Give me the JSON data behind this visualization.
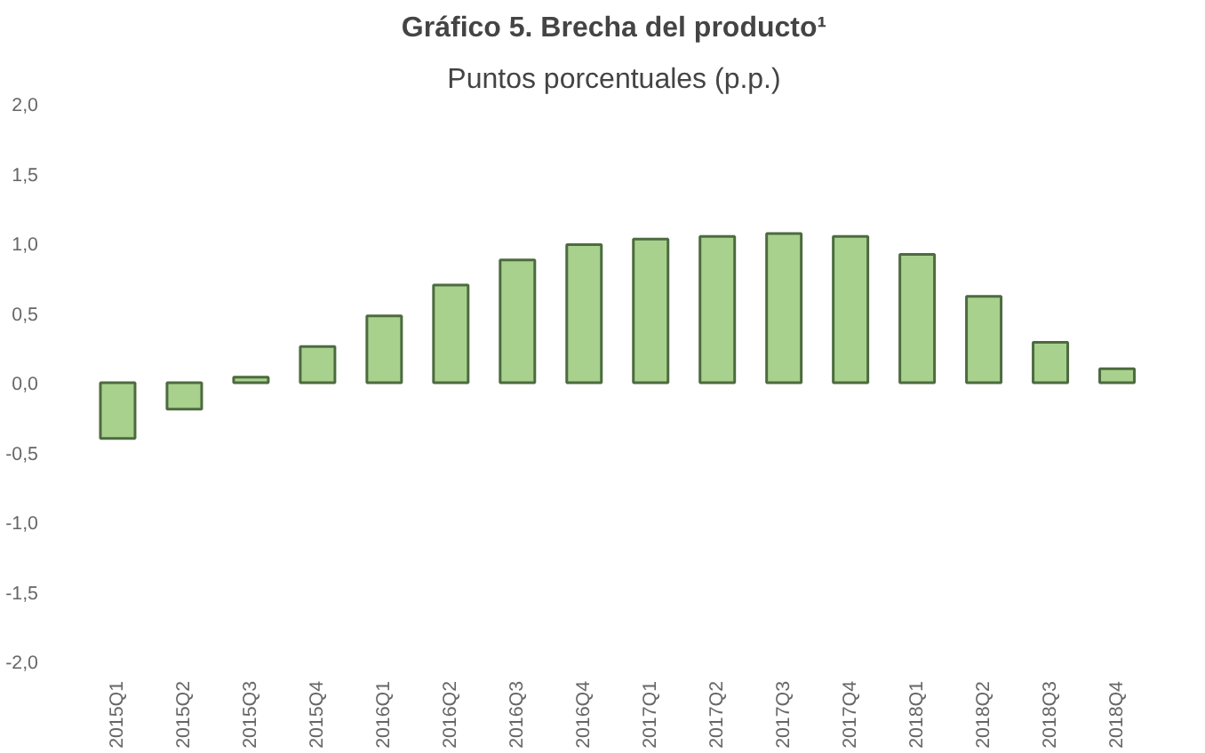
{
  "chart_data": {
    "type": "bar",
    "title": "Gráfico 5. Brecha del producto¹",
    "subtitle": "Puntos porcentuales (p.p.)",
    "categories": [
      "2015Q1",
      "2015Q2",
      "2015Q3",
      "2015Q4",
      "2016Q1",
      "2016Q2",
      "2016Q3",
      "2016Q4",
      "2017Q1",
      "2017Q2",
      "2017Q3",
      "2017Q4",
      "2018Q1",
      "2018Q2",
      "2018Q3",
      "2018Q4"
    ],
    "values": [
      -0.4,
      -0.19,
      0.04,
      0.26,
      0.48,
      0.7,
      0.88,
      0.99,
      1.03,
      1.05,
      1.07,
      1.05,
      0.92,
      0.62,
      0.29,
      0.1
    ],
    "color": "#a9d18e",
    "ylim": [
      -2.0,
      2.0
    ],
    "yticks": [
      {
        "value": -2.0,
        "label": "-2,0"
      },
      {
        "value": -1.5,
        "label": "-1,5"
      },
      {
        "value": -1.0,
        "label": "-1,0"
      },
      {
        "value": -0.5,
        "label": "-0,5"
      },
      {
        "value": 0.0,
        "label": "0,0"
      },
      {
        "value": 0.5,
        "label": "0,5"
      },
      {
        "value": 1.0,
        "label": "1,0"
      },
      {
        "value": 1.5,
        "label": "1,5"
      },
      {
        "value": 2.0,
        "label": "2,0"
      }
    ],
    "grid": false
  }
}
